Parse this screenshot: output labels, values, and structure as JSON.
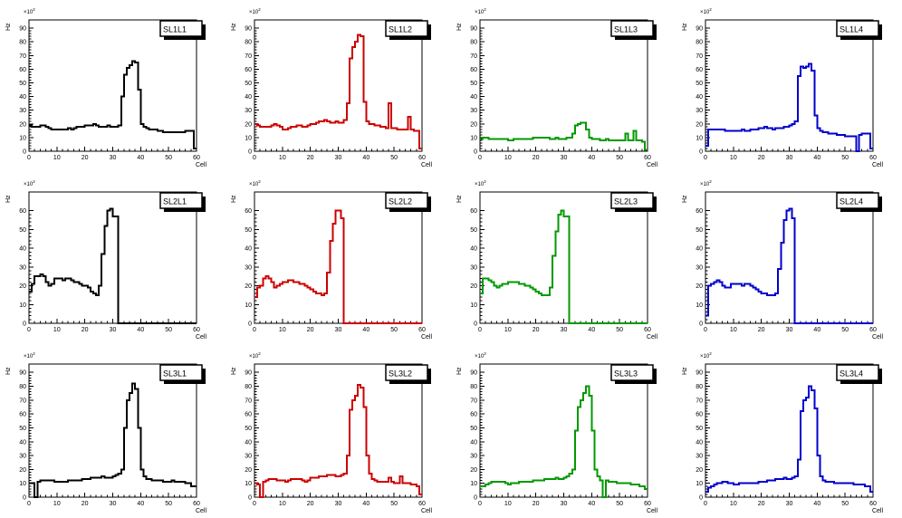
{
  "page": {
    "background": "#ffffff"
  },
  "axis": {
    "x_label": "Cell",
    "y_label": "Hz",
    "y_power_base": "×10",
    "y_power_exp": "2",
    "x_tick_labels": [
      "0",
      "10",
      "20",
      "30",
      "40",
      "50",
      "60"
    ]
  },
  "chart_data": [
    {
      "type": "step-histogram",
      "label": "SL1L1",
      "color": "#000000",
      "xlabel": "Cell",
      "ylabel": "Hz",
      "y_unit_multiplier": "x10^2",
      "xlim": [
        0,
        60
      ],
      "ylim": [
        0,
        96
      ],
      "bins": 60,
      "grid": false,
      "legend_position": "top-right",
      "y_tick_labels": [
        "0",
        "10",
        "20",
        "30",
        "40",
        "50",
        "60",
        "70",
        "80",
        "90"
      ],
      "values": [
        19,
        18,
        18,
        18,
        19,
        19,
        18,
        17,
        16,
        16,
        16,
        16,
        16,
        16,
        17,
        16,
        17,
        18,
        18,
        18,
        19,
        19,
        19,
        20,
        19,
        18,
        18,
        18,
        19,
        18,
        18,
        18,
        19,
        40,
        56,
        61,
        63,
        66,
        65,
        45,
        20,
        18,
        17,
        16,
        16,
        16,
        15,
        15,
        14,
        14,
        14,
        14,
        14,
        14,
        14,
        14,
        15,
        15,
        15,
        2
      ]
    },
    {
      "type": "step-histogram",
      "label": "SL1L2",
      "color": "#cc0000",
      "xlabel": "Cell",
      "ylabel": "Hz",
      "y_unit_multiplier": "x10^2",
      "xlim": [
        0,
        60
      ],
      "ylim": [
        0,
        96
      ],
      "bins": 60,
      "grid": false,
      "legend_position": "top-right",
      "y_tick_labels": [
        "0",
        "10",
        "20",
        "30",
        "40",
        "50",
        "60",
        "70",
        "80",
        "90"
      ],
      "values": [
        20,
        19,
        18,
        18,
        18,
        18,
        19,
        20,
        19,
        18,
        16,
        16,
        17,
        18,
        18,
        19,
        19,
        18,
        18,
        19,
        20,
        20,
        21,
        22,
        22,
        23,
        22,
        21,
        21,
        22,
        21,
        21,
        23,
        35,
        68,
        76,
        80,
        85,
        84,
        36,
        22,
        20,
        20,
        19,
        19,
        18,
        18,
        17,
        35,
        17,
        17,
        16,
        16,
        16,
        16,
        25,
        16,
        15,
        15,
        2
      ]
    },
    {
      "type": "step-histogram",
      "label": "SL1L3",
      "color": "#009900",
      "xlabel": "Cell",
      "ylabel": "Hz",
      "y_unit_multiplier": "x10^2",
      "xlim": [
        0,
        60
      ],
      "ylim": [
        0,
        96
      ],
      "bins": 60,
      "grid": false,
      "legend_position": "top-right",
      "y_tick_labels": [
        "0",
        "10",
        "20",
        "30",
        "40",
        "50",
        "60",
        "70",
        "80",
        "90"
      ],
      "values": [
        9,
        10,
        10,
        9,
        9,
        9,
        9,
        9,
        9,
        9,
        8,
        8,
        9,
        9,
        9,
        9,
        9,
        9,
        9,
        10,
        10,
        10,
        10,
        10,
        10,
        9,
        9,
        10,
        9,
        9,
        9,
        10,
        10,
        13,
        19,
        20,
        21,
        21,
        16,
        10,
        9,
        9,
        9,
        8,
        8,
        9,
        8,
        8,
        8,
        8,
        8,
        8,
        13,
        8,
        8,
        15,
        8,
        8,
        7,
        1
      ]
    },
    {
      "type": "step-histogram",
      "label": "SL1L4",
      "color": "#0000cc",
      "xlabel": "Cell",
      "ylabel": "Hz",
      "y_unit_multiplier": "x10^2",
      "xlim": [
        0,
        60
      ],
      "ylim": [
        0,
        96
      ],
      "bins": 60,
      "grid": false,
      "legend_position": "top-right",
      "y_tick_labels": [
        "0",
        "10",
        "20",
        "30",
        "40",
        "50",
        "60",
        "70",
        "80",
        "90"
      ],
      "values": [
        4,
        16,
        16,
        16,
        16,
        16,
        16,
        15,
        15,
        15,
        15,
        15,
        15,
        16,
        15,
        15,
        16,
        16,
        16,
        17,
        17,
        18,
        17,
        17,
        16,
        17,
        17,
        17,
        18,
        18,
        19,
        20,
        22,
        55,
        62,
        61,
        62,
        64,
        59,
        26,
        17,
        15,
        14,
        14,
        13,
        13,
        13,
        12,
        12,
        12,
        11,
        11,
        11,
        11,
        0,
        12,
        13,
        13,
        13,
        2
      ]
    },
    {
      "type": "step-histogram",
      "label": "SL2L1",
      "color": "#000000",
      "xlabel": "Cell",
      "ylabel": "Hz",
      "y_unit_multiplier": "x10^2",
      "xlim": [
        0,
        60
      ],
      "ylim": [
        0,
        70
      ],
      "bins": 60,
      "grid": false,
      "legend_position": "top-right",
      "y_tick_labels": [
        "0",
        "10",
        "20",
        "30",
        "40",
        "50",
        "60"
      ],
      "values": [
        17,
        21,
        25,
        25,
        26,
        25,
        22,
        20,
        21,
        24,
        24,
        24,
        23,
        24,
        24,
        23,
        22,
        22,
        21,
        20,
        20,
        19,
        17,
        16,
        15,
        20,
        37,
        52,
        60,
        61,
        57,
        57,
        0,
        0,
        0,
        0,
        0,
        0,
        0,
        0,
        0,
        0,
        0,
        0,
        0,
        0,
        0,
        0,
        0,
        0,
        0,
        0,
        0,
        0,
        0,
        0,
        0,
        0,
        0,
        0
      ]
    },
    {
      "type": "step-histogram",
      "label": "SL2L2",
      "color": "#cc0000",
      "xlabel": "Cell",
      "ylabel": "Hz",
      "y_unit_multiplier": "x10^2",
      "xlim": [
        0,
        60
      ],
      "ylim": [
        0,
        70
      ],
      "bins": 60,
      "grid": false,
      "legend_position": "top-right",
      "y_tick_labels": [
        "0",
        "10",
        "20",
        "30",
        "40",
        "50",
        "60"
      ],
      "values": [
        14,
        19,
        20,
        24,
        25,
        24,
        22,
        19,
        20,
        21,
        22,
        22,
        23,
        23,
        22,
        22,
        21,
        21,
        20,
        19,
        18,
        17,
        16,
        16,
        15,
        16,
        27,
        44,
        53,
        60,
        60,
        56,
        0,
        0,
        0,
        0,
        0,
        0,
        0,
        0,
        0,
        0,
        0,
        0,
        0,
        0,
        0,
        0,
        0,
        0,
        0,
        0,
        0,
        0,
        0,
        0,
        0,
        0,
        0,
        0
      ]
    },
    {
      "type": "step-histogram",
      "label": "SL2L3",
      "color": "#009900",
      "xlabel": "Cell",
      "ylabel": "Hz",
      "y_unit_multiplier": "x10^2",
      "xlim": [
        0,
        60
      ],
      "ylim": [
        0,
        70
      ],
      "bins": 60,
      "grid": false,
      "legend_position": "top-right",
      "y_tick_labels": [
        "0",
        "10",
        "20",
        "30",
        "40",
        "50",
        "60"
      ],
      "values": [
        16,
        24,
        24,
        23,
        22,
        20,
        19,
        20,
        21,
        21,
        22,
        22,
        22,
        22,
        21,
        21,
        20,
        20,
        19,
        18,
        17,
        16,
        15,
        15,
        15,
        19,
        36,
        49,
        58,
        60,
        57,
        57,
        0,
        0,
        0,
        0,
        0,
        0,
        0,
        0,
        0,
        0,
        0,
        0,
        0,
        0,
        0,
        0,
        0,
        0,
        0,
        0,
        0,
        0,
        0,
        0,
        0,
        0,
        0,
        0
      ]
    },
    {
      "type": "step-histogram",
      "label": "SL2L4",
      "color": "#0000cc",
      "xlabel": "Cell",
      "ylabel": "Hz",
      "y_unit_multiplier": "x10^2",
      "xlim": [
        0,
        60
      ],
      "ylim": [
        0,
        70
      ],
      "bins": 60,
      "grid": false,
      "legend_position": "top-right",
      "y_tick_labels": [
        "0",
        "10",
        "20",
        "30",
        "40",
        "50",
        "60"
      ],
      "values": [
        4,
        20,
        21,
        22,
        23,
        22,
        20,
        19,
        19,
        21,
        21,
        21,
        21,
        20,
        21,
        21,
        20,
        19,
        18,
        17,
        16,
        16,
        15,
        15,
        15,
        16,
        29,
        43,
        55,
        60,
        61,
        56,
        0,
        0,
        0,
        0,
        0,
        0,
        0,
        0,
        0,
        0,
        0,
        0,
        0,
        0,
        0,
        0,
        0,
        0,
        0,
        0,
        0,
        0,
        0,
        0,
        0,
        0,
        0,
        0
      ]
    },
    {
      "type": "step-histogram",
      "label": "SL3L1",
      "color": "#000000",
      "xlabel": "Cell",
      "ylabel": "Hz",
      "y_unit_multiplier": "x10^2",
      "xlim": [
        0,
        60
      ],
      "ylim": [
        0,
        96
      ],
      "bins": 60,
      "grid": false,
      "legend_position": "top-right",
      "y_tick_labels": [
        "0",
        "10",
        "20",
        "30",
        "40",
        "50",
        "60",
        "70",
        "80",
        "90"
      ],
      "values": [
        10,
        10,
        0,
        11,
        12,
        12,
        12,
        12,
        12,
        11,
        11,
        11,
        11,
        11,
        12,
        12,
        12,
        12,
        12,
        13,
        13,
        13,
        14,
        14,
        14,
        14,
        15,
        14,
        14,
        14,
        15,
        16,
        17,
        20,
        50,
        70,
        75,
        82,
        78,
        50,
        20,
        15,
        13,
        13,
        12,
        12,
        12,
        12,
        11,
        11,
        11,
        12,
        11,
        11,
        11,
        11,
        10,
        10,
        8,
        8
      ]
    },
    {
      "type": "step-histogram",
      "label": "SL3L2",
      "color": "#cc0000",
      "xlabel": "Cell",
      "ylabel": "Hz",
      "y_unit_multiplier": "x10^2",
      "xlim": [
        0,
        60
      ],
      "ylim": [
        0,
        96
      ],
      "bins": 60,
      "grid": false,
      "legend_position": "top-right",
      "y_tick_labels": [
        "0",
        "10",
        "20",
        "30",
        "40",
        "50",
        "60",
        "70",
        "80",
        "90"
      ],
      "values": [
        10,
        9,
        0,
        11,
        12,
        13,
        13,
        13,
        12,
        12,
        12,
        11,
        12,
        13,
        13,
        13,
        13,
        12,
        11,
        12,
        14,
        14,
        14,
        15,
        15,
        15,
        16,
        16,
        16,
        15,
        15,
        16,
        17,
        30,
        63,
        70,
        73,
        81,
        79,
        65,
        30,
        17,
        13,
        12,
        11,
        11,
        11,
        11,
        14,
        11,
        10,
        10,
        15,
        10,
        10,
        10,
        9,
        9,
        8,
        2
      ]
    },
    {
      "type": "step-histogram",
      "label": "SL3L3",
      "color": "#009900",
      "xlabel": "Cell",
      "ylabel": "Hz",
      "y_unit_multiplier": "x10^2",
      "xlim": [
        0,
        60
      ],
      "ylim": [
        0,
        96
      ],
      "bins": 60,
      "grid": false,
      "legend_position": "top-right",
      "y_tick_labels": [
        "0",
        "10",
        "20",
        "30",
        "40",
        "50",
        "60",
        "70",
        "80",
        "90"
      ],
      "values": [
        8,
        8,
        9,
        10,
        11,
        11,
        11,
        11,
        11,
        10,
        9,
        10,
        10,
        10,
        11,
        11,
        11,
        11,
        11,
        12,
        12,
        12,
        12,
        13,
        13,
        13,
        13,
        14,
        13,
        13,
        14,
        15,
        17,
        20,
        48,
        65,
        70,
        75,
        80,
        73,
        48,
        20,
        15,
        12,
        0,
        12,
        11,
        11,
        11,
        10,
        10,
        10,
        10,
        10,
        9,
        9,
        9,
        8,
        8,
        6
      ]
    },
    {
      "type": "step-histogram",
      "label": "SL3L4",
      "color": "#0000cc",
      "xlabel": "Cell",
      "ylabel": "Hz",
      "y_unit_multiplier": "x10^2",
      "xlim": [
        0,
        60
      ],
      "ylim": [
        0,
        96
      ],
      "bins": 60,
      "grid": false,
      "legend_position": "top-right",
      "y_tick_labels": [
        "0",
        "10",
        "20",
        "30",
        "40",
        "50",
        "60",
        "70",
        "80",
        "90"
      ],
      "values": [
        4,
        7,
        8,
        9,
        10,
        10,
        11,
        11,
        10,
        10,
        9,
        9,
        10,
        10,
        10,
        10,
        10,
        10,
        10,
        11,
        11,
        11,
        12,
        12,
        12,
        13,
        13,
        13,
        14,
        13,
        13,
        14,
        15,
        27,
        62,
        70,
        72,
        80,
        77,
        64,
        30,
        15,
        12,
        11,
        11,
        11,
        10,
        10,
        10,
        10,
        10,
        10,
        10,
        9,
        9,
        9,
        9,
        8,
        8,
        4
      ]
    }
  ]
}
